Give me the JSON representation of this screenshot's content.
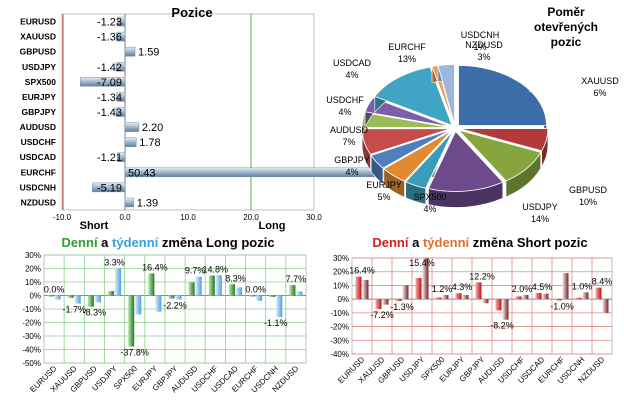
{
  "chart_data": [
    {
      "id": "positions",
      "type": "bar",
      "orientation": "horizontal",
      "title": "Pozice",
      "categories": [
        "EURUSD",
        "XAUUSD",
        "GBPUSD",
        "USDJPY",
        "SPX500",
        "EURJPY",
        "GBPJPY",
        "AUDUSD",
        "USDCHF",
        "USDCAD",
        "EURCHF",
        "USDCNH",
        "NZDUSD"
      ],
      "values": [
        -1.23,
        -1.36,
        1.59,
        -1.42,
        -7.09,
        -1.34,
        -1.43,
        2.2,
        1.78,
        -1.21,
        50.43,
        -5.19,
        1.39
      ],
      "value_labels": [
        "-1.23",
        "-1.36",
        "1.59",
        "-1.42",
        "-7.09",
        "-1.34",
        "-1.43",
        "2.20",
        "1.78",
        "-1.21",
        "50.43",
        "-5.19",
        "1.39"
      ],
      "xlim": [
        -10,
        30
      ],
      "ticks": [
        "-10.0",
        "0.0",
        "10.0",
        "20.0",
        "30.0"
      ],
      "short_label": "Short",
      "long_label": "Long",
      "colors": {
        "bar": "#9fb6cc",
        "short_line": "#d04040",
        "long_line": "#5ab04a"
      }
    },
    {
      "id": "open-interest",
      "type": "pie",
      "title_lines": [
        "Poměr",
        "otevřených",
        "pozic"
      ],
      "slices": [
        {
          "name": "EURUSD",
          "value": 25,
          "label": "25%",
          "color": "#3d6da8"
        },
        {
          "name": "XAUUSD",
          "value": 6,
          "label": "6%",
          "color": "#b23a38"
        },
        {
          "name": "GBPUSD",
          "value": 10,
          "label": "10%",
          "color": "#86a53e"
        },
        {
          "name": "USDJPY",
          "value": 14,
          "label": "14%",
          "color": "#6c4a8c"
        },
        {
          "name": "SPX500",
          "value": 4,
          "label": "4%",
          "color": "#3a9cb8"
        },
        {
          "name": "EURJPY",
          "value": 5,
          "label": "5%",
          "color": "#e08a32"
        },
        {
          "name": "GBPJPY",
          "value": 4,
          "label": "4%",
          "color": "#4f7fbd"
        },
        {
          "name": "AUDUSD",
          "value": 7,
          "label": "7%",
          "color": "#c44d4a"
        },
        {
          "name": "USDCHF",
          "value": 4,
          "label": "4%",
          "color": "#9bbb59"
        },
        {
          "name": "USDCAD",
          "value": 4,
          "label": "4%",
          "color": "#7d5ea8"
        },
        {
          "name": "EURCHF",
          "value": 13,
          "label": "13%",
          "color": "#40a4c4"
        },
        {
          "name": "USDCNH",
          "value": 1,
          "label": "1%",
          "color": "#f39a45"
        },
        {
          "name": "NZDUSD",
          "value": 3,
          "label": "3%",
          "color": "#9cb7de"
        }
      ]
    },
    {
      "id": "long-change",
      "type": "bar",
      "title_parts": [
        {
          "text": "Denní",
          "color": "#2ca02c"
        },
        {
          "text": " a ",
          "color": "#000000"
        },
        {
          "text": "týdenní",
          "color": "#3aa0e0"
        },
        {
          "text": " změna Long pozic",
          "color": "#000000"
        }
      ],
      "categories": [
        "EURUSD",
        "XAUUSD",
        "GBPUSD",
        "USDJPY",
        "SPX500",
        "EURJPY",
        "GBPJPY",
        "AUDUSD",
        "USDCHF",
        "USDCAD",
        "EURCHF",
        "USDCNH",
        "NZDUSD"
      ],
      "series": [
        {
          "name": "Denní",
          "values": [
            0.0,
            -1.7,
            -8.3,
            3.3,
            -37.8,
            16.4,
            -2.2,
            9.7,
            14.8,
            8.3,
            0.0,
            -1.1,
            7.7
          ],
          "color": "#2e8b2e"
        },
        {
          "name": "Týdenní",
          "values": [
            -3,
            -6,
            -5,
            20,
            -14,
            -12,
            -3,
            14,
            15,
            6,
            -4,
            -16,
            3
          ],
          "color": "#6fb3ea"
        }
      ],
      "data_labels": [
        "0.0%",
        "-1.7%",
        "-8.3%",
        "3.3%",
        "-37.8%",
        "16.4%",
        "-2.2%",
        "9.7%",
        "14.8%",
        "8.3%",
        "0.0%",
        "-1.1%",
        "7.7%"
      ],
      "ylim": [
        -50,
        30
      ],
      "yticks": [
        "30%",
        "20%",
        "10%",
        "0%",
        "-10%",
        "-20%",
        "-30%",
        "-40%",
        "-50%"
      ]
    },
    {
      "id": "short-change",
      "type": "bar",
      "title_parts": [
        {
          "text": "Denní",
          "color": "#d42020"
        },
        {
          "text": " a ",
          "color": "#000000"
        },
        {
          "text": "týdenní",
          "color": "#e06f2c"
        },
        {
          "text": " změna Short pozic",
          "color": "#000000"
        }
      ],
      "categories": [
        "EURUSD",
        "XAUUSD",
        "GBPUSD",
        "USDJPY",
        "SPX500",
        "EURJPY",
        "GBPJPY",
        "AUDUSD",
        "USDCHF",
        "USDCAD",
        "EURCHF",
        "USDCNH",
        "NZDUSD"
      ],
      "series": [
        {
          "name": "Denní",
          "values": [
            16.4,
            -7.2,
            -1.3,
            15.4,
            1.2,
            4.3,
            12.2,
            -8.2,
            2.0,
            4.5,
            -1.0,
            1.0,
            8.4
          ],
          "color": "#c81818"
        },
        {
          "name": "Týdenní",
          "values": [
            14,
            -4,
            10,
            30,
            3,
            3,
            -3,
            -15,
            3,
            4,
            19,
            5,
            -10
          ],
          "color": "#9a3a3a"
        }
      ],
      "data_labels": [
        "16.4%",
        "-7.2%",
        "-1.3%",
        "15.4%",
        "1.2%",
        "4.3%",
        "12.2%",
        "-8.2%",
        "2.0%",
        "4.5%",
        "-1.0%",
        "1.0%",
        "8.4%"
      ],
      "ylim": [
        -40,
        30
      ],
      "yticks": [
        "30%",
        "20%",
        "10%",
        "0%",
        "-10%",
        "-20%",
        "-30%",
        "-40%"
      ]
    }
  ]
}
